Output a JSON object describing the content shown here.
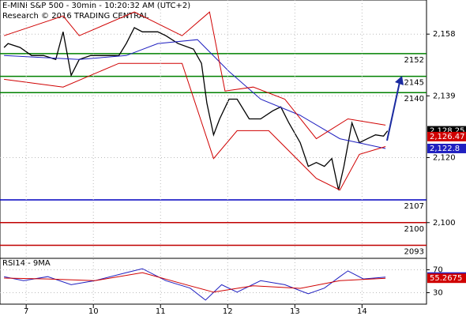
{
  "chart_data": [
    {
      "type": "line",
      "title": "E-MINI S&P 500 - 30min - 10:20:32 AM (UTC+2)",
      "subtitle": "Research © 2016 TRADING CENTRAL",
      "xlim": [
        -0.39,
        5.96
      ],
      "ylim": [
        2089,
        2168.5
      ],
      "yticks": [
        {
          "value": 2158,
          "label": "2,158"
        },
        {
          "value": 2139,
          "label": "2,139"
        },
        {
          "value": 2120,
          "label": "2,120"
        },
        {
          "value": 2100,
          "label": "2,100"
        }
      ],
      "series": [
        {
          "name": "price",
          "color": "#000000",
          "x": [
            -0.33,
            -0.27,
            -0.09,
            0.08,
            0.26,
            0.44,
            0.55,
            0.67,
            0.79,
            0.96,
            1.14,
            1.38,
            1.49,
            1.61,
            1.73,
            1.96,
            2.08,
            2.26,
            2.49,
            2.61,
            2.69,
            2.79,
            2.88,
            3.02,
            3.14,
            3.32,
            3.49,
            3.67,
            3.79,
            3.91,
            4.08,
            4.2,
            4.32,
            4.44,
            4.55,
            4.65,
            4.73,
            4.85,
            4.96,
            5.08,
            5.2,
            5.32,
            5.38
          ],
          "values": [
            2153.9,
            2155.1,
            2153.9,
            2151.4,
            2151.4,
            2150.2,
            2158.7,
            2145.3,
            2150.2,
            2151.4,
            2151.4,
            2151.4,
            2155.1,
            2160,
            2158.7,
            2158.7,
            2157.5,
            2155.1,
            2153.4,
            2149,
            2136.8,
            2127,
            2131.9,
            2138,
            2138,
            2131.9,
            2131.9,
            2134.4,
            2135.6,
            2130.7,
            2124.6,
            2117.3,
            2118.5,
            2117.3,
            2119.7,
            2110,
            2117.3,
            2130.7,
            2124.6,
            2125.8,
            2127,
            2126.6,
            2128.25
          ]
        },
        {
          "name": "moving-average",
          "color": "#2020c0",
          "x": [
            -0.33,
            0.79,
            1.49,
            1.96,
            2.55,
            3.02,
            3.49,
            4.08,
            4.67,
            5.35
          ],
          "values": [
            2151.4,
            2150.2,
            2151.4,
            2155.1,
            2156.3,
            2146.5,
            2138,
            2133,
            2125.8,
            2122.8
          ]
        },
        {
          "name": "upper-band",
          "color": "#d00000",
          "x": [
            -0.33,
            0.55,
            0.79,
            1.61,
            2.32,
            2.73,
            2.96,
            3.38,
            3.85,
            4.32,
            4.79,
            5.35
          ],
          "values": [
            2157.5,
            2163.6,
            2157.5,
            2164.8,
            2157.5,
            2164.8,
            2140.5,
            2141.7,
            2138,
            2125.8,
            2131.9,
            2130
          ]
        },
        {
          "name": "lower-band",
          "color": "#d00000",
          "x": [
            -0.33,
            0.55,
            1.38,
            2.32,
            2.79,
            3.14,
            3.61,
            4.32,
            4.67,
            4.96,
            5.35
          ],
          "values": [
            2144.1,
            2141.7,
            2149,
            2149,
            2119.7,
            2128.3,
            2128.3,
            2113.6,
            2110,
            2121,
            2123.4
          ]
        }
      ],
      "levels": [
        {
          "value": 2152,
          "color": "#008000"
        },
        {
          "value": 2145,
          "color": "#008000"
        },
        {
          "value": 2140,
          "color": "#008000"
        },
        {
          "value": 2107,
          "color": "#0000c0"
        },
        {
          "value": 2100,
          "color": "#c00000"
        },
        {
          "value": 2093,
          "color": "#c00000"
        }
      ],
      "badges": [
        {
          "value": 2128.25,
          "label": "2,128.25",
          "color": "#000000"
        },
        {
          "value": 2126.47,
          "label": "2,126.47",
          "color": "#d00000"
        },
        {
          "value": 2122.8,
          "label": "2,122.8",
          "color": "#2020c0"
        }
      ]
    },
    {
      "type": "line",
      "title": "RSI14 - 9MA",
      "xlim": [
        -0.39,
        5.96
      ],
      "ylim": [
        10,
        90
      ],
      "yticks": [
        70,
        30
      ],
      "xticks": [
        {
          "value": 0,
          "label": "7"
        },
        {
          "value": 1,
          "label": "10"
        },
        {
          "value": 2,
          "label": "11"
        },
        {
          "value": 3,
          "label": "12"
        },
        {
          "value": 4,
          "label": "13"
        },
        {
          "value": 5,
          "label": "14"
        }
      ],
      "series": [
        {
          "name": "RSI14",
          "color": "#2020c0",
          "x": [
            -0.33,
            -0.04,
            0.32,
            0.67,
            1.02,
            1.49,
            1.73,
            2.08,
            2.44,
            2.67,
            2.91,
            3.14,
            3.49,
            3.85,
            4.2,
            4.44,
            4.67,
            4.79,
            5.02,
            5.35
          ],
          "values": [
            58,
            51,
            58,
            44,
            51,
            65,
            72,
            51,
            38,
            17,
            44,
            31,
            51,
            44,
            28,
            38,
            58,
            68,
            54,
            57.3026
          ]
        },
        {
          "name": "9MA",
          "color": "#d00000",
          "x": [
            -0.33,
            0.32,
            1.02,
            1.73,
            2.44,
            2.79,
            3.38,
            4.08,
            4.67,
            5.35
          ],
          "values": [
            55.5,
            54,
            51,
            65,
            42,
            31,
            42,
            37.6,
            51,
            55.2675
          ]
        }
      ],
      "badges": [
        {
          "value": 57.3026,
          "label": "57.3026",
          "color": "#2020c0"
        },
        {
          "value": 55.2675,
          "label": "55.2675",
          "color": "#d00000"
        }
      ]
    }
  ]
}
